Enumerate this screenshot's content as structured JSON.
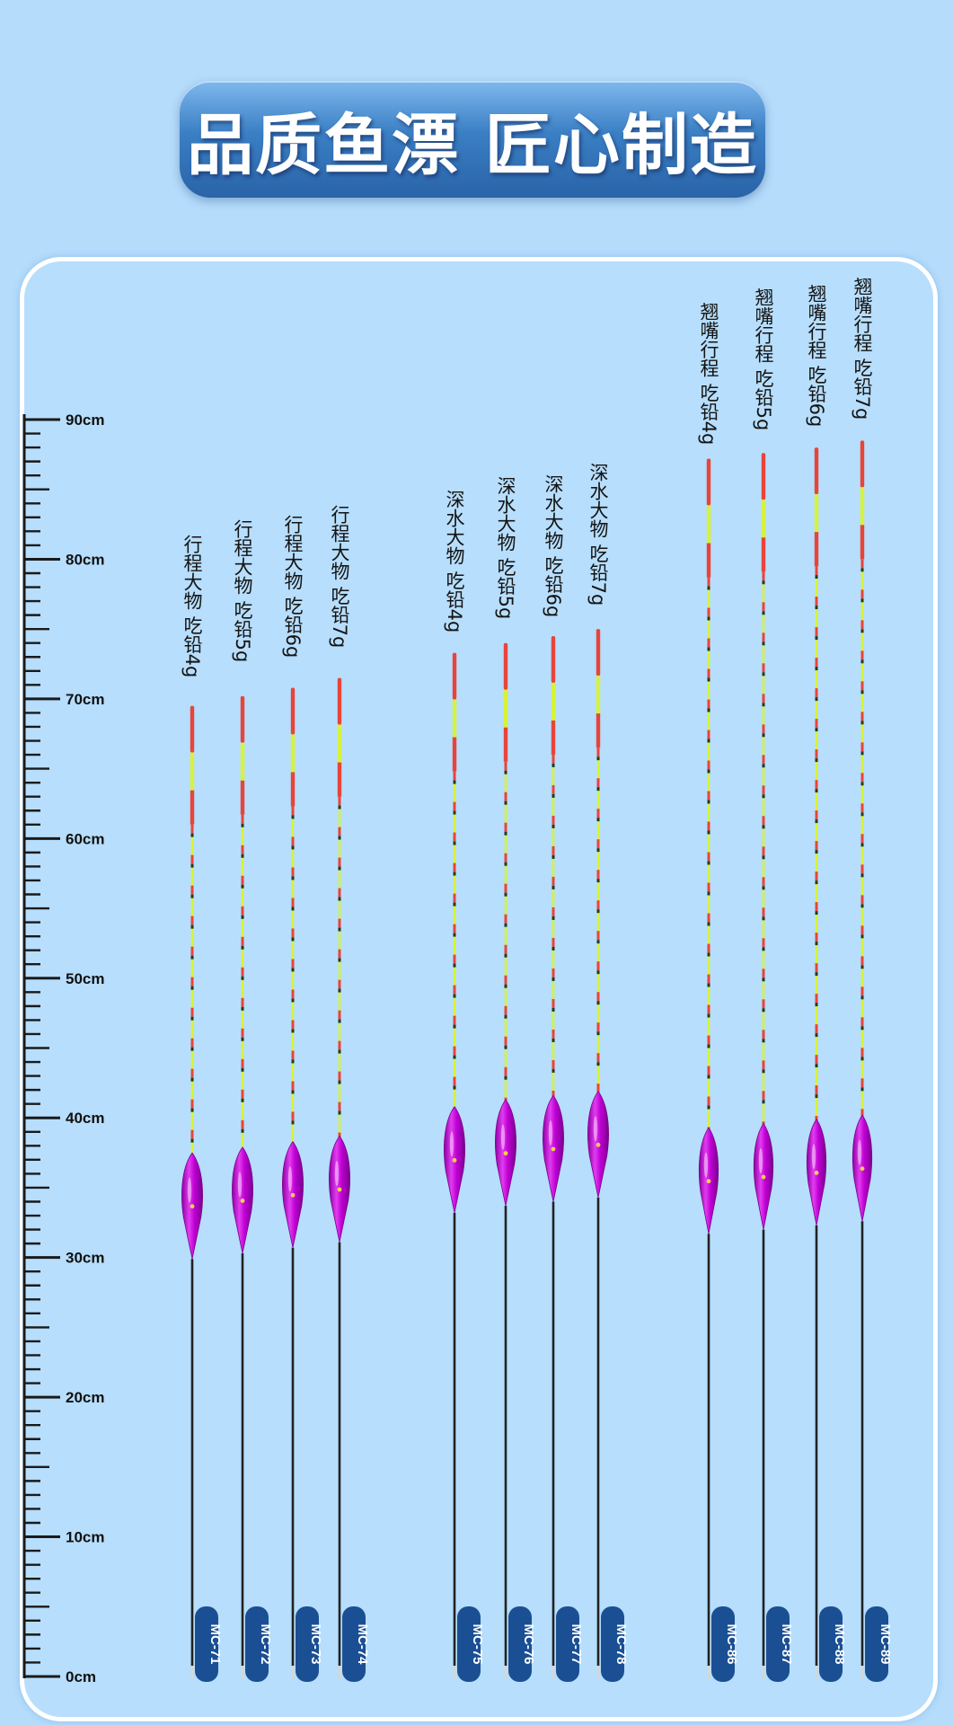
{
  "header": {
    "title": "品质鱼漂 匠心制造"
  },
  "ruler": {
    "unit": "cm",
    "min": 0,
    "max": 90,
    "labels": [
      "0cm",
      "10cm",
      "20cm",
      "30cm",
      "40cm",
      "50cm",
      "60cm",
      "70cm",
      "80cm",
      "90cm"
    ]
  },
  "colors": {
    "body": "#c000d4",
    "tip_red": "#e8443a",
    "tip_yellow": "#d7f23a",
    "badge": "#1b4f93",
    "stem": "#222222"
  },
  "groups": [
    {
      "name": "行程大物",
      "floats": [
        {
          "model": "MC-71",
          "label": "行程大物  吃铅4g",
          "length_cm": 69.5
        },
        {
          "model": "MC-72",
          "label": "行程大物  吃铅5g",
          "length_cm": 70.2
        },
        {
          "model": "MC-73",
          "label": "行程大物  吃铅6g",
          "length_cm": 70.8
        },
        {
          "model": "MC-74",
          "label": "行程大物  吃铅7g",
          "length_cm": 71.5
        }
      ]
    },
    {
      "name": "深水大物",
      "floats": [
        {
          "model": "MC-75",
          "label": "深水大物  吃铅4g",
          "length_cm": 73.3
        },
        {
          "model": "MC-76",
          "label": "深水大物  吃铅5g",
          "length_cm": 74.0
        },
        {
          "model": "MC-77",
          "label": "深水大物  吃铅6g",
          "length_cm": 74.5
        },
        {
          "model": "MC-78",
          "label": "深水大物  吃铅7g",
          "length_cm": 75.0
        }
      ]
    },
    {
      "name": "翘嘴行程",
      "floats": [
        {
          "model": "MC-86",
          "label": "翘嘴行程  吃铅4g",
          "length_cm": 87.2
        },
        {
          "model": "MC-87",
          "label": "翘嘴行程  吃铅5g",
          "length_cm": 87.6
        },
        {
          "model": "MC-88",
          "label": "翘嘴行程  吃铅6g",
          "length_cm": 88.0
        },
        {
          "model": "MC-89",
          "label": "翘嘴行程  吃铅7g",
          "length_cm": 88.5
        }
      ]
    }
  ]
}
